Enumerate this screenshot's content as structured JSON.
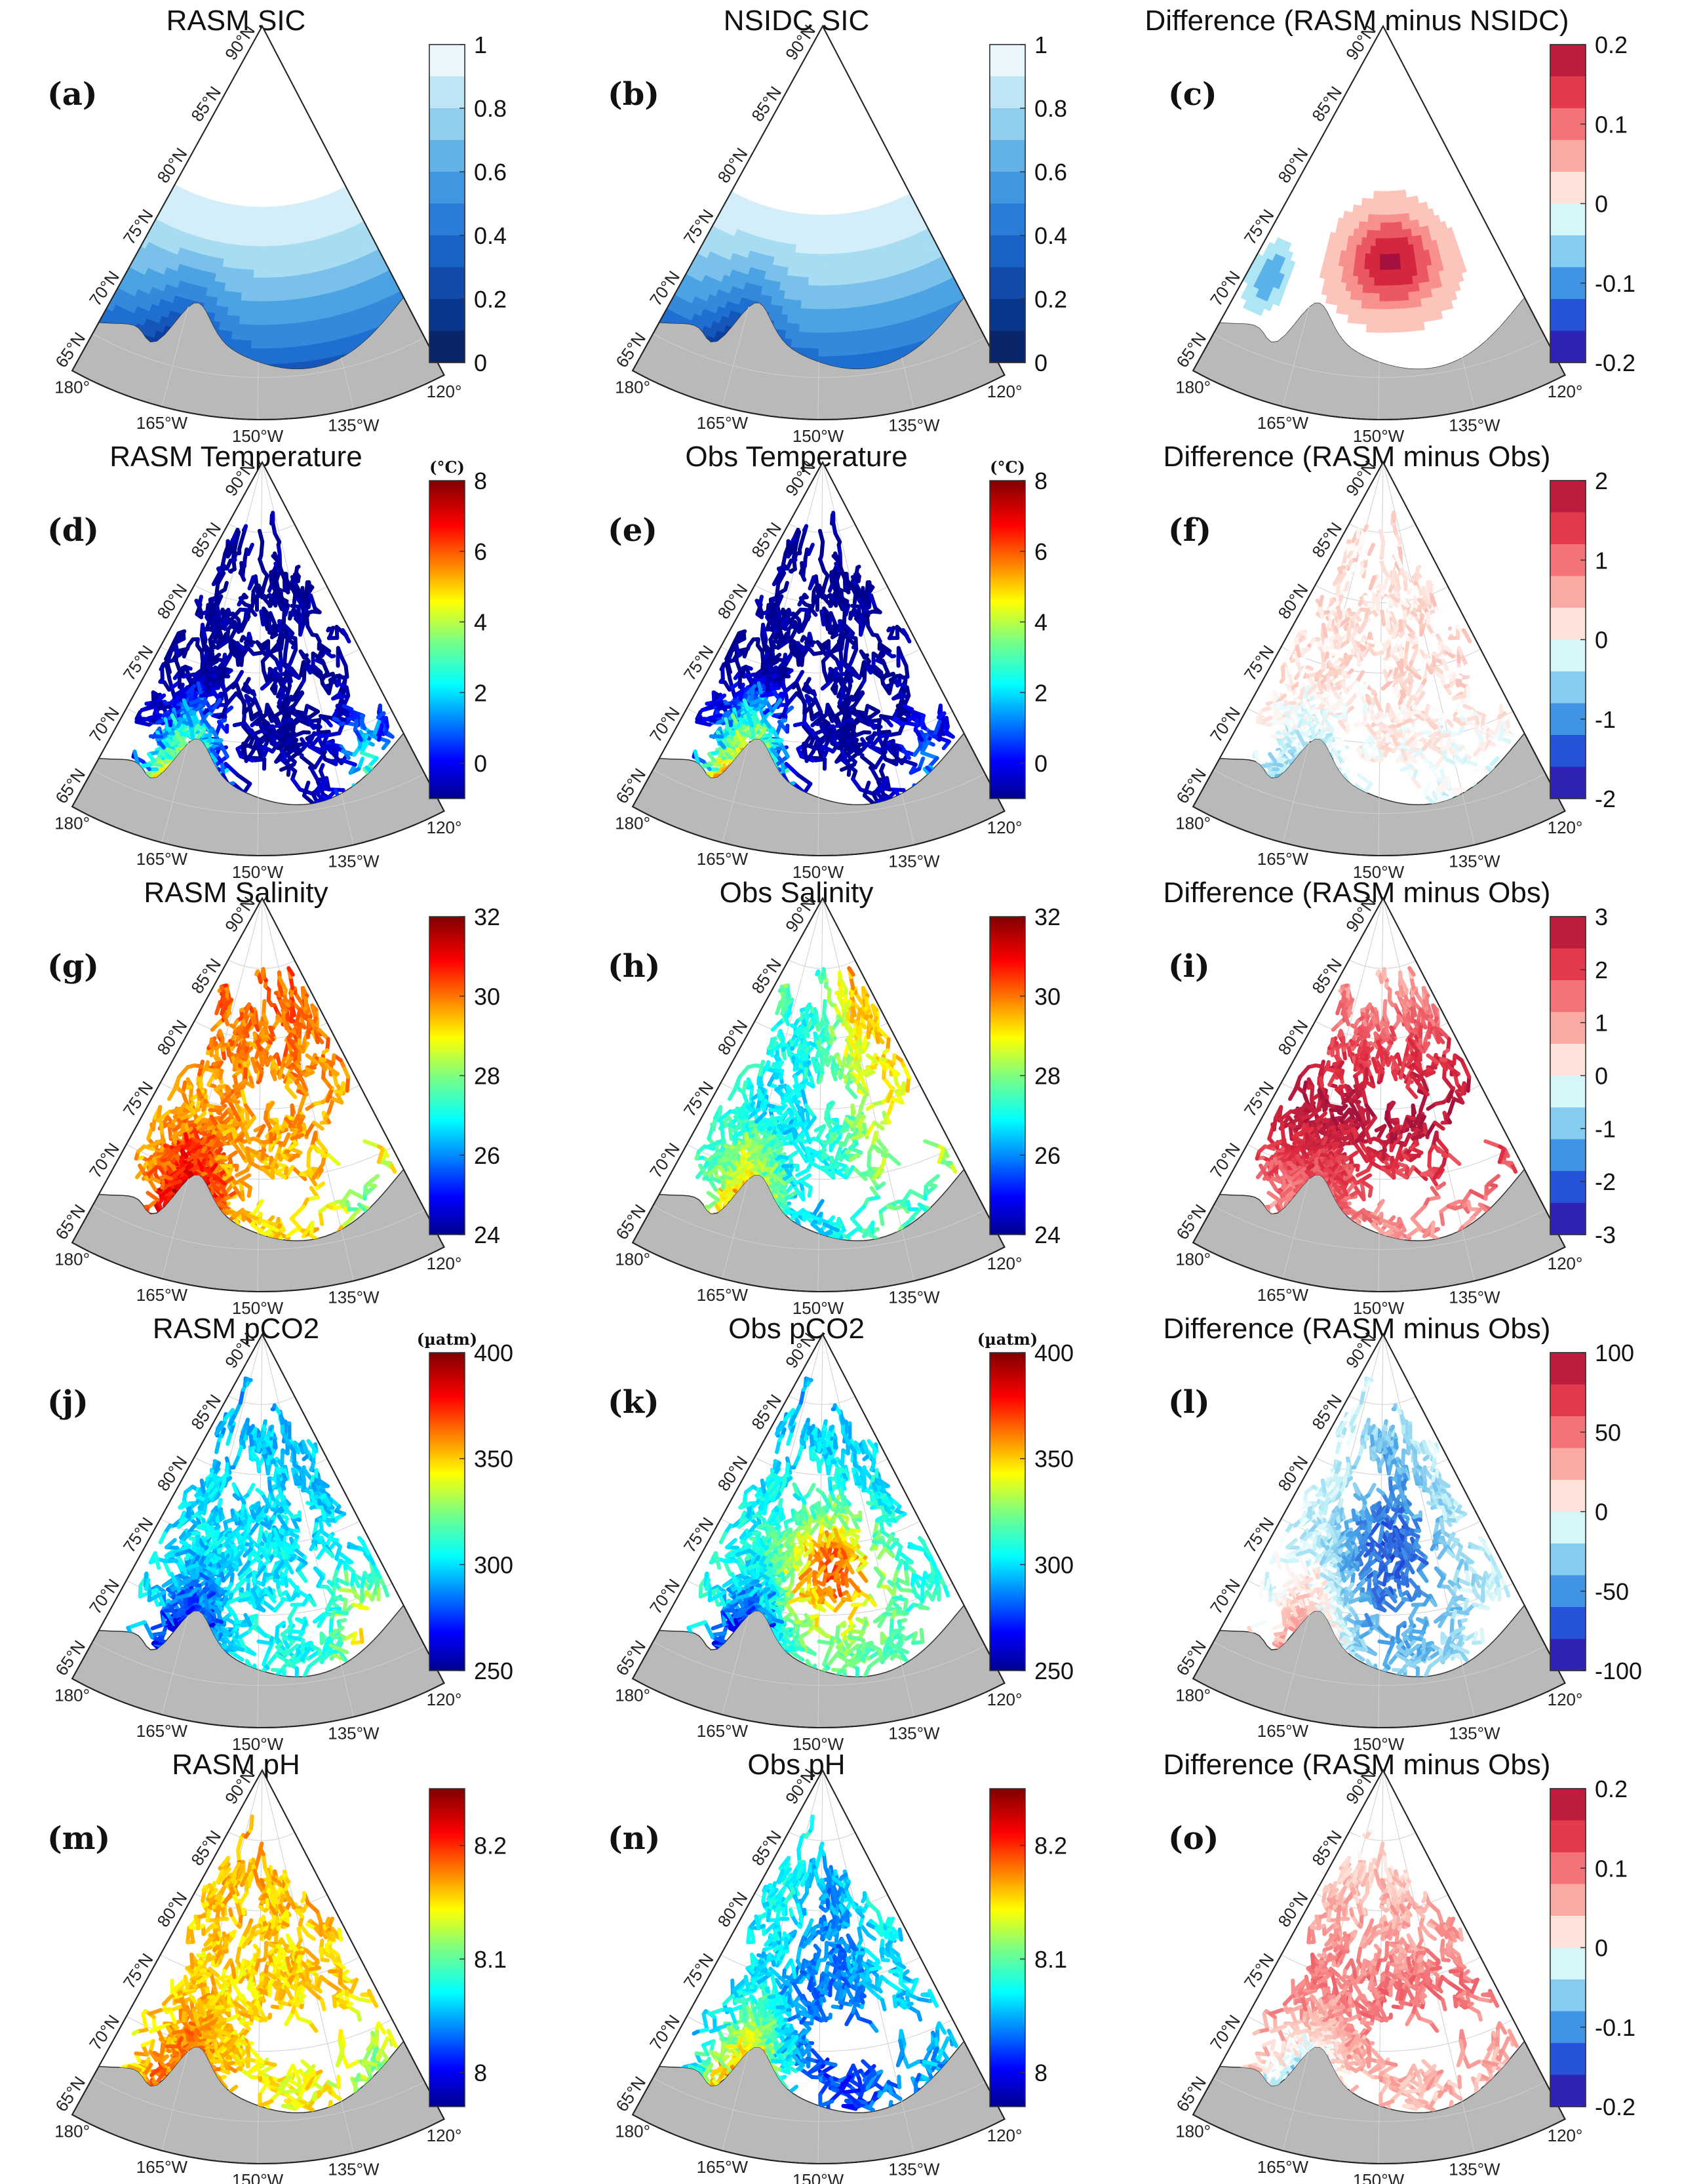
{
  "figure": {
    "lat_labels": [
      "90°N",
      "85°N",
      "80°N",
      "75°N",
      "70°N",
      "65°N"
    ],
    "lon_labels": [
      "180°",
      "165°W",
      "150°W",
      "135°W",
      "120°"
    ]
  },
  "chart_data": [
    {
      "type": "heatmap",
      "id": "a",
      "label": "(a)",
      "title": "RASM SIC",
      "cmap": "ice",
      "vmin": 0,
      "vmax": 1,
      "ticks": [
        0,
        0.2,
        0.4,
        0.6,
        0.8,
        1
      ],
      "unit": "",
      "field": "sic_rasm"
    },
    {
      "type": "heatmap",
      "id": "b",
      "label": "(b)",
      "title": "NSIDC SIC",
      "cmap": "ice",
      "vmin": 0,
      "vmax": 1,
      "ticks": [
        0,
        0.2,
        0.4,
        0.6,
        0.8,
        1
      ],
      "unit": "",
      "field": "sic_obs"
    },
    {
      "type": "heatmap",
      "id": "c",
      "label": "(c)",
      "title": "Difference (RASM minus NSIDC)",
      "cmap": "diff",
      "vmin": -0.2,
      "vmax": 0.2,
      "ticks": [
        -0.2,
        -0.1,
        0,
        0.1,
        0.2
      ],
      "unit": "",
      "field": "sic_diff"
    },
    {
      "type": "scatter",
      "id": "d",
      "label": "(d)",
      "title": "RASM Temperature",
      "cmap": "jet",
      "vmin": -1,
      "vmax": 8,
      "ticks": [
        0,
        2,
        4,
        6,
        8
      ],
      "unit": "(°C)",
      "field": "temp_rasm"
    },
    {
      "type": "scatter",
      "id": "e",
      "label": "(e)",
      "title": "Obs Temperature",
      "cmap": "jet",
      "vmin": -1,
      "vmax": 8,
      "ticks": [
        0,
        2,
        4,
        6,
        8
      ],
      "unit": "(°C)",
      "field": "temp_obs"
    },
    {
      "type": "scatter",
      "id": "f",
      "label": "(f)",
      "title": "Difference (RASM minus Obs)",
      "cmap": "diff",
      "vmin": -2,
      "vmax": 2,
      "ticks": [
        -2,
        -1,
        0,
        1,
        2
      ],
      "unit": "",
      "field": "temp_diff"
    },
    {
      "type": "scatter",
      "id": "g",
      "label": "(g)",
      "title": "RASM Salinity",
      "cmap": "jet",
      "vmin": 24,
      "vmax": 32,
      "ticks": [
        24,
        26,
        28,
        30,
        32
      ],
      "unit": "",
      "field": "sal_rasm"
    },
    {
      "type": "scatter",
      "id": "h",
      "label": "(h)",
      "title": "Obs Salinity",
      "cmap": "jet",
      "vmin": 24,
      "vmax": 32,
      "ticks": [
        24,
        26,
        28,
        30,
        32
      ],
      "unit": "",
      "field": "sal_obs"
    },
    {
      "type": "scatter",
      "id": "i",
      "label": "(i)",
      "title": "Difference (RASM minus Obs)",
      "cmap": "diff",
      "vmin": -3,
      "vmax": 3,
      "ticks": [
        -3,
        -2,
        -1,
        0,
        1,
        2,
        3
      ],
      "unit": "",
      "field": "sal_diff"
    },
    {
      "type": "scatter",
      "id": "j",
      "label": "(j)",
      "title": "RASM pCO2",
      "cmap": "jet",
      "vmin": 250,
      "vmax": 400,
      "ticks": [
        250,
        300,
        350,
        400
      ],
      "unit": "(µatm)",
      "field": "pco2_rasm"
    },
    {
      "type": "scatter",
      "id": "k",
      "label": "(k)",
      "title": "Obs pCO2",
      "cmap": "jet",
      "vmin": 250,
      "vmax": 400,
      "ticks": [
        250,
        300,
        350,
        400
      ],
      "unit": "(µatm)",
      "field": "pco2_obs"
    },
    {
      "type": "scatter",
      "id": "l",
      "label": "(l)",
      "title": "Difference (RASM minus Obs)",
      "cmap": "diff",
      "vmin": -100,
      "vmax": 100,
      "ticks": [
        -100,
        -50,
        0,
        50,
        100
      ],
      "unit": "",
      "field": "pco2_diff"
    },
    {
      "type": "scatter",
      "id": "m",
      "label": "(m)",
      "title": "RASM pH",
      "cmap": "jet",
      "vmin": 7.97,
      "vmax": 8.25,
      "ticks": [
        8,
        8.1,
        8.2
      ],
      "unit": "",
      "field": "ph_rasm"
    },
    {
      "type": "scatter",
      "id": "n",
      "label": "(n)",
      "title": "Obs pH",
      "cmap": "jet",
      "vmin": 7.97,
      "vmax": 8.25,
      "ticks": [
        8,
        8.1,
        8.2
      ],
      "unit": "",
      "field": "ph_obs"
    },
    {
      "type": "scatter",
      "id": "o",
      "label": "(o)",
      "title": "Difference (RASM minus Obs)",
      "cmap": "diff",
      "vmin": -0.2,
      "vmax": 0.2,
      "ticks": [
        -0.2,
        -0.1,
        0,
        0.1,
        0.2
      ],
      "unit": "",
      "field": "ph_diff"
    }
  ]
}
